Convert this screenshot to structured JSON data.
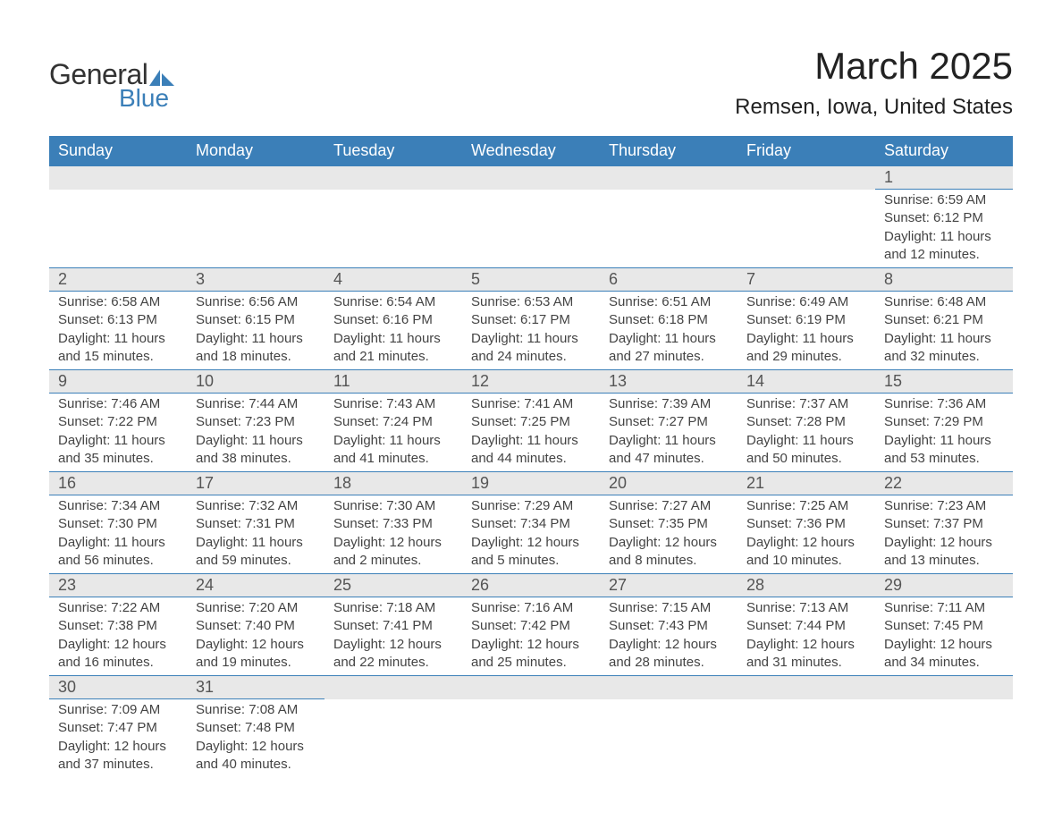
{
  "logo": {
    "text1": "General",
    "text2": "Blue",
    "accent_color": "#3b7fb8"
  },
  "title": "March 2025",
  "location": "Remsen, Iowa, United States",
  "colors": {
    "header_bg": "#3b7fb8",
    "header_text": "#ffffff",
    "daynum_bg": "#e8e8e8",
    "border": "#3b7fb8",
    "text": "#444444"
  },
  "typography": {
    "title_fontsize": 42,
    "location_fontsize": 24,
    "weekday_fontsize": 18,
    "daynum_fontsize": 18,
    "body_fontsize": 15
  },
  "weekdays": [
    "Sunday",
    "Monday",
    "Tuesday",
    "Wednesday",
    "Thursday",
    "Friday",
    "Saturday"
  ],
  "weeks": [
    [
      null,
      null,
      null,
      null,
      null,
      null,
      {
        "n": "1",
        "sunrise": "6:59 AM",
        "sunset": "6:12 PM",
        "daylight": "11 hours and 12 minutes."
      }
    ],
    [
      {
        "n": "2",
        "sunrise": "6:58 AM",
        "sunset": "6:13 PM",
        "daylight": "11 hours and 15 minutes."
      },
      {
        "n": "3",
        "sunrise": "6:56 AM",
        "sunset": "6:15 PM",
        "daylight": "11 hours and 18 minutes."
      },
      {
        "n": "4",
        "sunrise": "6:54 AM",
        "sunset": "6:16 PM",
        "daylight": "11 hours and 21 minutes."
      },
      {
        "n": "5",
        "sunrise": "6:53 AM",
        "sunset": "6:17 PM",
        "daylight": "11 hours and 24 minutes."
      },
      {
        "n": "6",
        "sunrise": "6:51 AM",
        "sunset": "6:18 PM",
        "daylight": "11 hours and 27 minutes."
      },
      {
        "n": "7",
        "sunrise": "6:49 AM",
        "sunset": "6:19 PM",
        "daylight": "11 hours and 29 minutes."
      },
      {
        "n": "8",
        "sunrise": "6:48 AM",
        "sunset": "6:21 PM",
        "daylight": "11 hours and 32 minutes."
      }
    ],
    [
      {
        "n": "9",
        "sunrise": "7:46 AM",
        "sunset": "7:22 PM",
        "daylight": "11 hours and 35 minutes."
      },
      {
        "n": "10",
        "sunrise": "7:44 AM",
        "sunset": "7:23 PM",
        "daylight": "11 hours and 38 minutes."
      },
      {
        "n": "11",
        "sunrise": "7:43 AM",
        "sunset": "7:24 PM",
        "daylight": "11 hours and 41 minutes."
      },
      {
        "n": "12",
        "sunrise": "7:41 AM",
        "sunset": "7:25 PM",
        "daylight": "11 hours and 44 minutes."
      },
      {
        "n": "13",
        "sunrise": "7:39 AM",
        "sunset": "7:27 PM",
        "daylight": "11 hours and 47 minutes."
      },
      {
        "n": "14",
        "sunrise": "7:37 AM",
        "sunset": "7:28 PM",
        "daylight": "11 hours and 50 minutes."
      },
      {
        "n": "15",
        "sunrise": "7:36 AM",
        "sunset": "7:29 PM",
        "daylight": "11 hours and 53 minutes."
      }
    ],
    [
      {
        "n": "16",
        "sunrise": "7:34 AM",
        "sunset": "7:30 PM",
        "daylight": "11 hours and 56 minutes."
      },
      {
        "n": "17",
        "sunrise": "7:32 AM",
        "sunset": "7:31 PM",
        "daylight": "11 hours and 59 minutes."
      },
      {
        "n": "18",
        "sunrise": "7:30 AM",
        "sunset": "7:33 PM",
        "daylight": "12 hours and 2 minutes."
      },
      {
        "n": "19",
        "sunrise": "7:29 AM",
        "sunset": "7:34 PM",
        "daylight": "12 hours and 5 minutes."
      },
      {
        "n": "20",
        "sunrise": "7:27 AM",
        "sunset": "7:35 PM",
        "daylight": "12 hours and 8 minutes."
      },
      {
        "n": "21",
        "sunrise": "7:25 AM",
        "sunset": "7:36 PM",
        "daylight": "12 hours and 10 minutes."
      },
      {
        "n": "22",
        "sunrise": "7:23 AM",
        "sunset": "7:37 PM",
        "daylight": "12 hours and 13 minutes."
      }
    ],
    [
      {
        "n": "23",
        "sunrise": "7:22 AM",
        "sunset": "7:38 PM",
        "daylight": "12 hours and 16 minutes."
      },
      {
        "n": "24",
        "sunrise": "7:20 AM",
        "sunset": "7:40 PM",
        "daylight": "12 hours and 19 minutes."
      },
      {
        "n": "25",
        "sunrise": "7:18 AM",
        "sunset": "7:41 PM",
        "daylight": "12 hours and 22 minutes."
      },
      {
        "n": "26",
        "sunrise": "7:16 AM",
        "sunset": "7:42 PM",
        "daylight": "12 hours and 25 minutes."
      },
      {
        "n": "27",
        "sunrise": "7:15 AM",
        "sunset": "7:43 PM",
        "daylight": "12 hours and 28 minutes."
      },
      {
        "n": "28",
        "sunrise": "7:13 AM",
        "sunset": "7:44 PM",
        "daylight": "12 hours and 31 minutes."
      },
      {
        "n": "29",
        "sunrise": "7:11 AM",
        "sunset": "7:45 PM",
        "daylight": "12 hours and 34 minutes."
      }
    ],
    [
      {
        "n": "30",
        "sunrise": "7:09 AM",
        "sunset": "7:47 PM",
        "daylight": "12 hours and 37 minutes."
      },
      {
        "n": "31",
        "sunrise": "7:08 AM",
        "sunset": "7:48 PM",
        "daylight": "12 hours and 40 minutes."
      },
      null,
      null,
      null,
      null,
      null
    ]
  ],
  "labels": {
    "sunrise": "Sunrise: ",
    "sunset": "Sunset: ",
    "daylight": "Daylight: "
  }
}
